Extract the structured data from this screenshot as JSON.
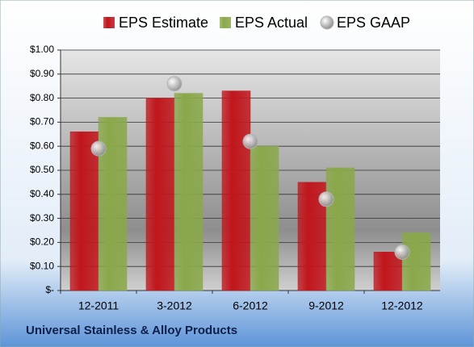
{
  "chart_data": {
    "type": "bar",
    "title": "Universal Stainless & Alloy Products",
    "categories": [
      "12-2011",
      "3-2012",
      "6-2012",
      "9-2012",
      "12-2012"
    ],
    "series": [
      {
        "name": "EPS Estimate",
        "color": "#c0161c",
        "values": [
          0.66,
          0.8,
          0.83,
          0.45,
          0.16
        ]
      },
      {
        "name": "EPS Actual",
        "color": "#8aa84a",
        "values": [
          0.72,
          0.82,
          0.6,
          0.51,
          0.24
        ]
      },
      {
        "name": "EPS GAAP",
        "color": "#b4b4b4",
        "type": "scatter",
        "values": [
          0.59,
          0.86,
          0.62,
          0.38,
          0.16
        ]
      }
    ],
    "ylim": [
      0,
      1.0
    ],
    "yticks": [
      {
        "value": 0,
        "label": "$-"
      },
      {
        "value": 0.1,
        "label": "$0.10"
      },
      {
        "value": 0.2,
        "label": "$0.20"
      },
      {
        "value": 0.3,
        "label": "$0.30"
      },
      {
        "value": 0.4,
        "label": "$0.40"
      },
      {
        "value": 0.5,
        "label": "$0.50"
      },
      {
        "value": 0.6,
        "label": "$0.60"
      },
      {
        "value": 0.7,
        "label": "$0.70"
      },
      {
        "value": 0.8,
        "label": "$0.80"
      },
      {
        "value": 0.9,
        "label": "$0.90"
      },
      {
        "value": 1.0,
        "label": "$1.00"
      }
    ],
    "grid": true,
    "legend": "top"
  }
}
